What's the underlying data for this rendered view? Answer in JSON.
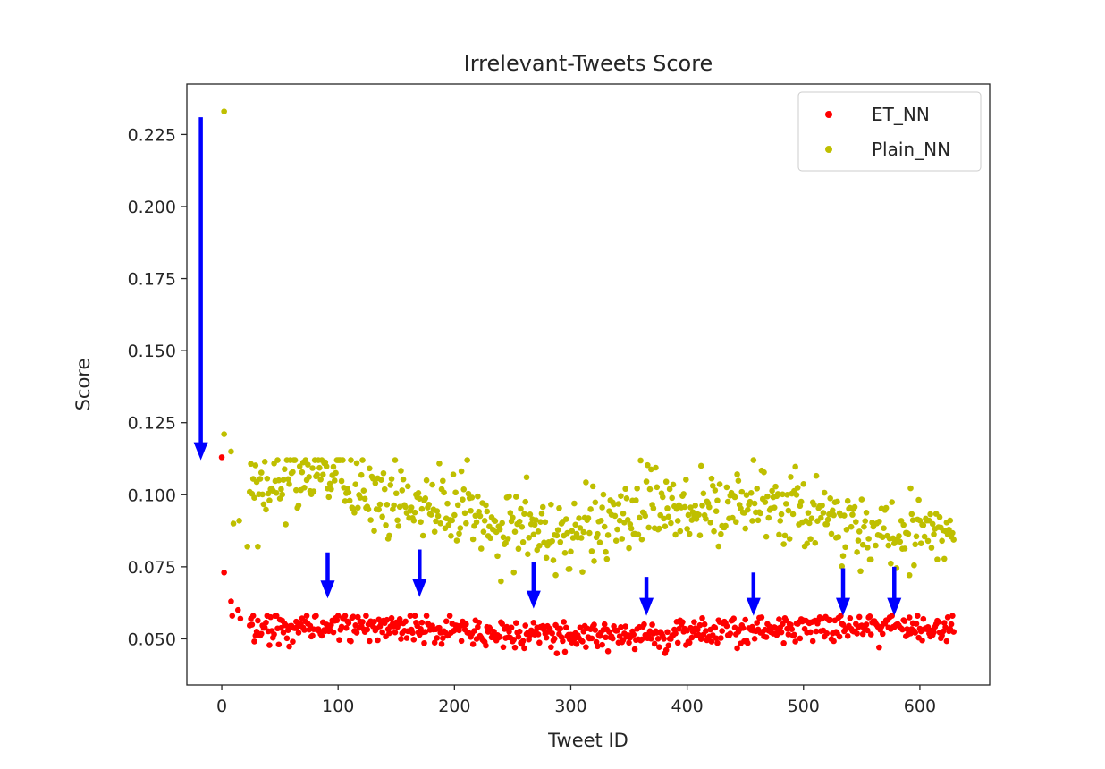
{
  "chart_data": {
    "type": "scatter",
    "title": "Irrelevant-Tweets Score",
    "xlabel": "Tweet ID",
    "ylabel": "Score",
    "xlim": [
      -30,
      660
    ],
    "ylim": [
      0.034,
      0.2425
    ],
    "xticks": [
      0,
      100,
      200,
      300,
      400,
      500,
      600
    ],
    "xtick_labels": [
      "0",
      "100",
      "200",
      "300",
      "400",
      "500",
      "600"
    ],
    "yticks": [
      0.05,
      0.075,
      0.1,
      0.125,
      0.15,
      0.175,
      0.2,
      0.225
    ],
    "ytick_labels": [
      "0.050",
      "0.075",
      "0.100",
      "0.125",
      "0.150",
      "0.175",
      "0.200",
      "0.225"
    ],
    "grid": false,
    "legend_position": "top-right",
    "series": [
      {
        "name": "ET_NN",
        "color": "#ff0000",
        "n_points": 630,
        "first_points": [
          [
            0,
            0.113
          ],
          [
            2,
            0.073
          ],
          [
            8,
            0.063
          ],
          [
            9,
            0.058
          ],
          [
            14,
            0.06
          ],
          [
            16,
            0.057
          ]
        ],
        "band_mean": 0.0525,
        "band_range": [
          0.044,
          0.058
        ]
      },
      {
        "name": "Plain_NN",
        "color": "#bfbf00",
        "n_points": 630,
        "first_points": [
          [
            2,
            0.233
          ],
          [
            2,
            0.121
          ],
          [
            8,
            0.115
          ],
          [
            10,
            0.09
          ],
          [
            15,
            0.091
          ],
          [
            22,
            0.082
          ]
        ],
        "band_mean": 0.095,
        "band_range": [
          0.067,
          0.112
        ]
      }
    ],
    "annotations": [
      {
        "type": "arrow",
        "color": "#0000ff",
        "x": -18,
        "y_start": 0.231,
        "y_end": 0.112
      },
      {
        "type": "arrow",
        "color": "#0000ff",
        "x": 91,
        "y_start": 0.08,
        "y_end": 0.064
      },
      {
        "type": "arrow",
        "color": "#0000ff",
        "x": 170,
        "y_start": 0.081,
        "y_end": 0.0645
      },
      {
        "type": "arrow",
        "color": "#0000ff",
        "x": 268,
        "y_start": 0.0765,
        "y_end": 0.0605
      },
      {
        "type": "arrow",
        "color": "#0000ff",
        "x": 365,
        "y_start": 0.0715,
        "y_end": 0.058
      },
      {
        "type": "arrow",
        "color": "#0000ff",
        "x": 457,
        "y_start": 0.073,
        "y_end": 0.058
      },
      {
        "type": "arrow",
        "color": "#0000ff",
        "x": 534,
        "y_start": 0.0745,
        "y_end": 0.058
      },
      {
        "type": "arrow",
        "color": "#0000ff",
        "x": 578,
        "y_start": 0.075,
        "y_end": 0.058
      }
    ]
  }
}
